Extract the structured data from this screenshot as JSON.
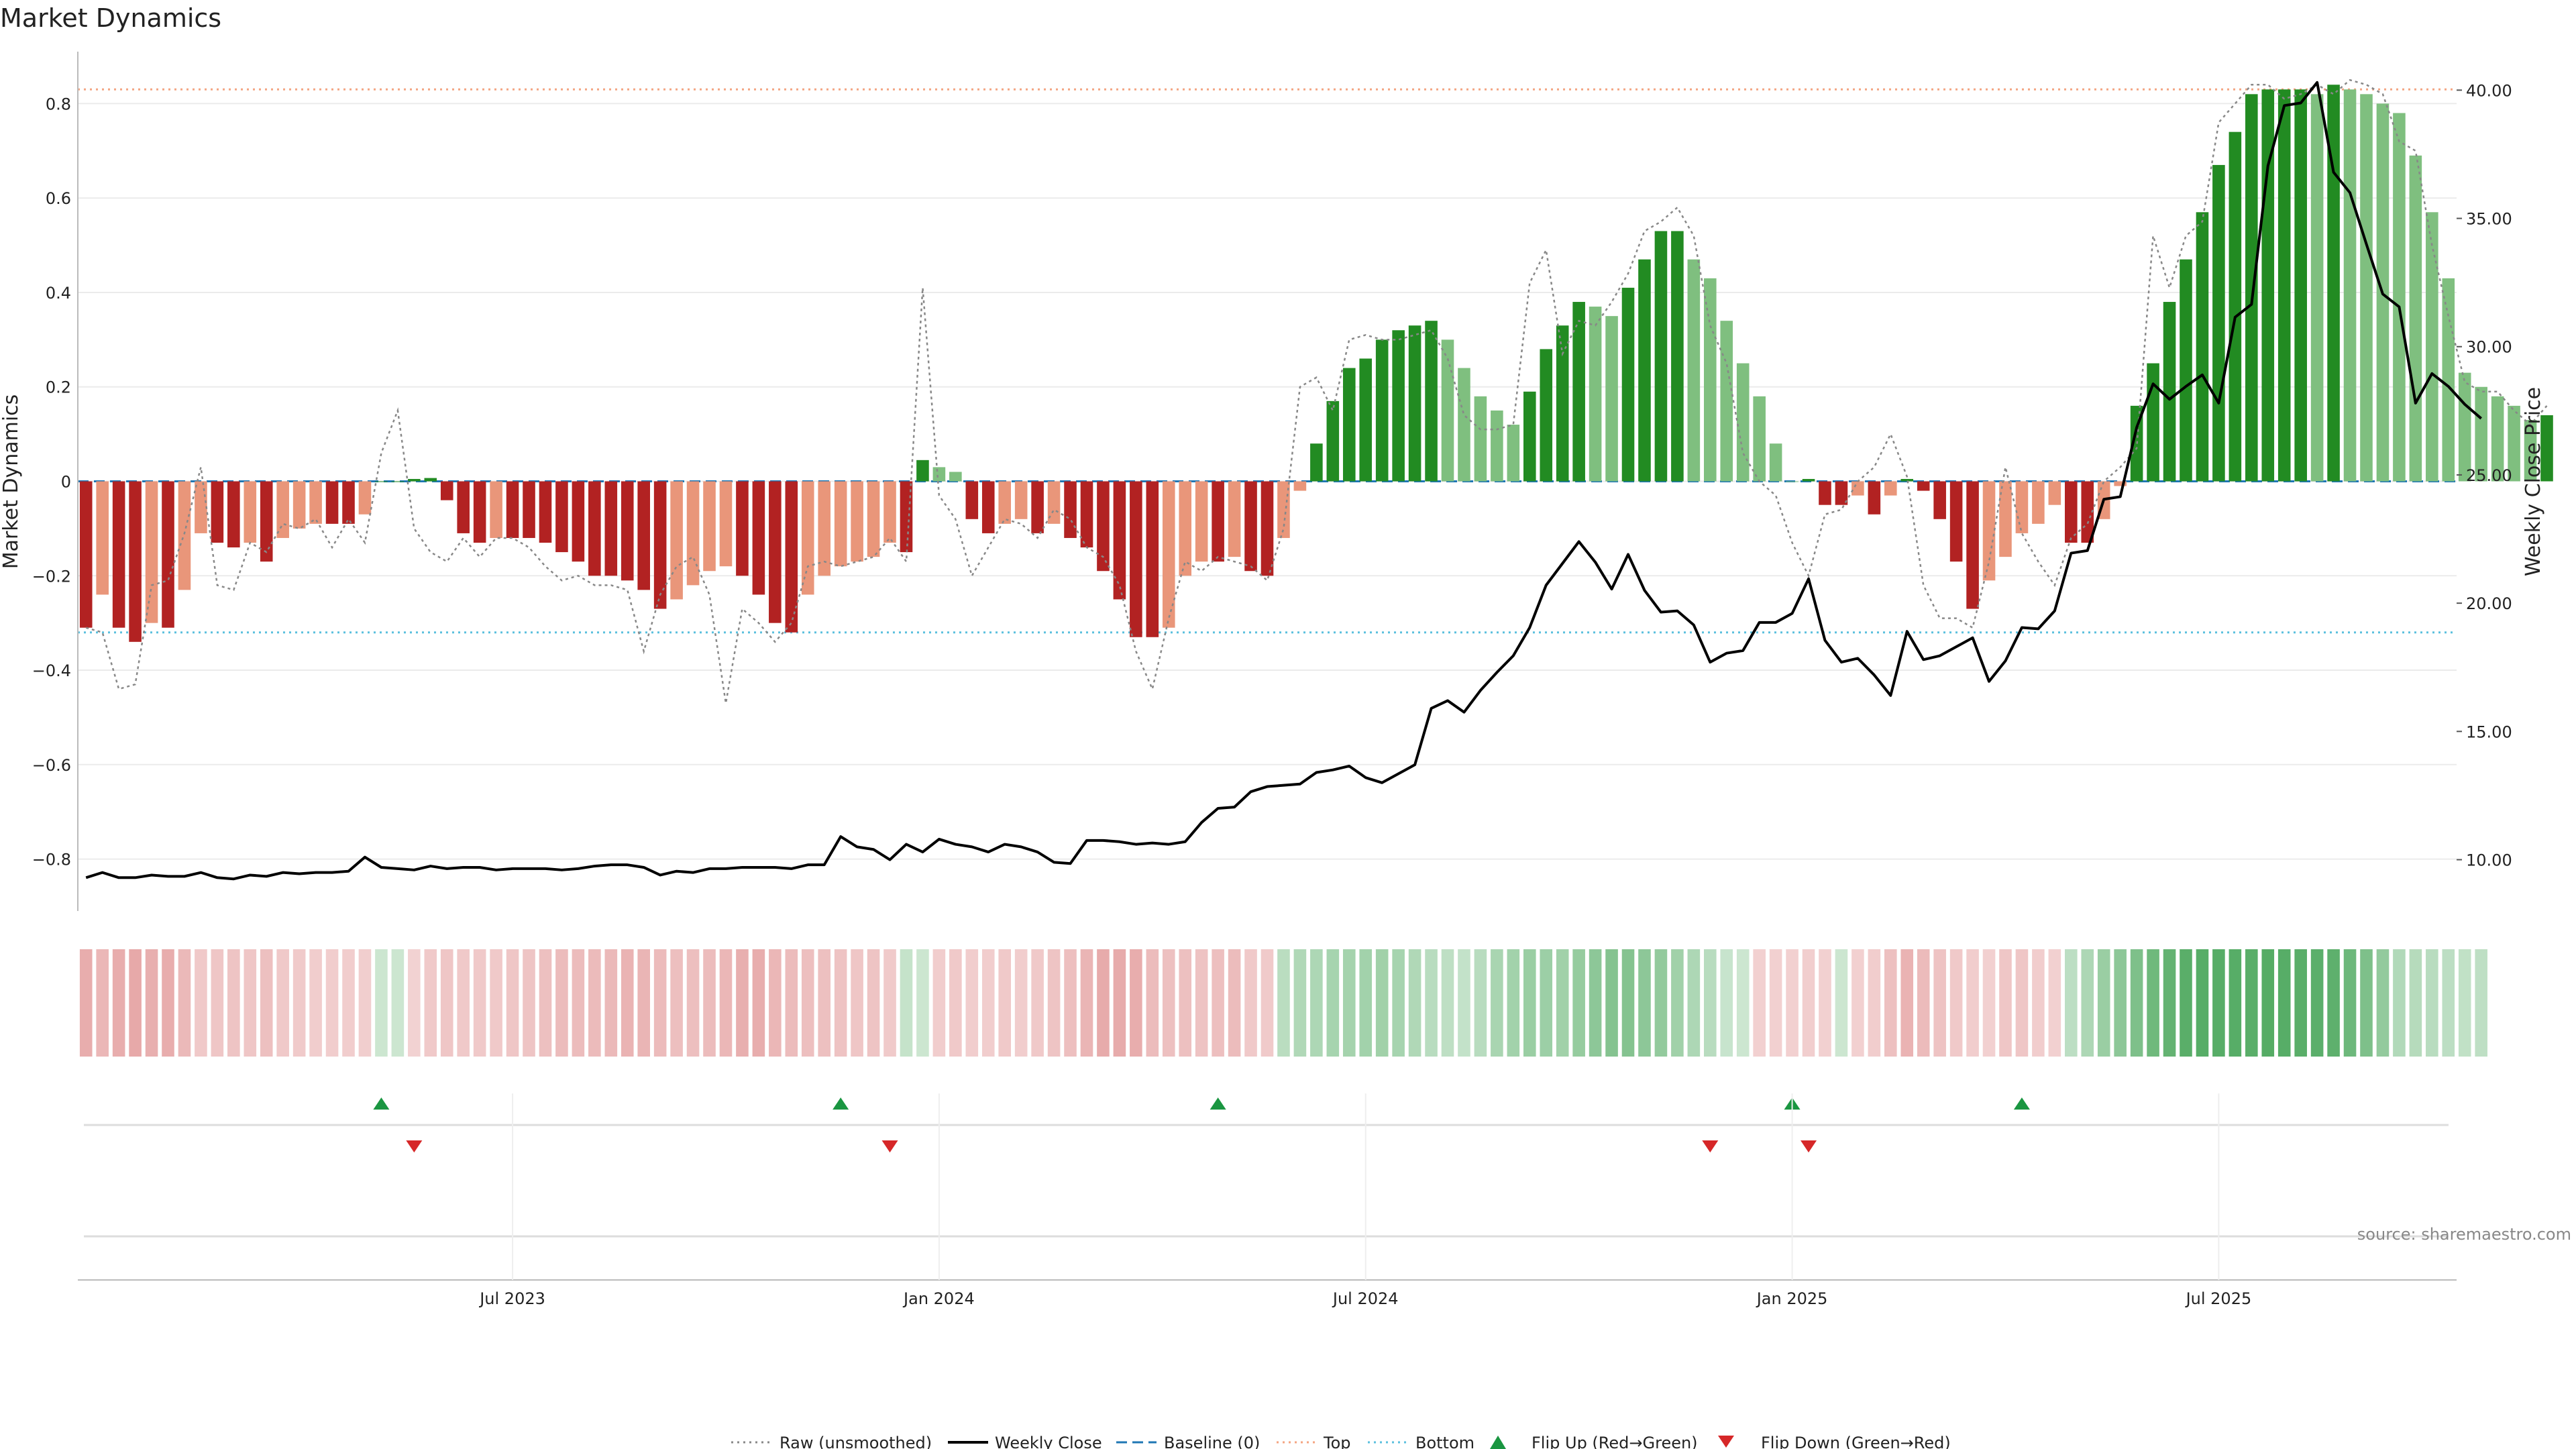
{
  "title": "Market Dynamics",
  "source": "source: sharemaestro.com",
  "colors": {
    "strong_red": "#b22222",
    "weak_red": "#e9967a",
    "strong_green": "#228b22",
    "weak_green": "#7fbf7f",
    "raw": "#888888",
    "close": "#000000",
    "baseline": "#1f77b4",
    "top": "#f4a582",
    "bottom": "#5bc0de",
    "flip_up": "#1a9641",
    "flip_down": "#d62728"
  },
  "chart_data": {
    "type": "bar",
    "title": "Market Dynamics",
    "ylabel": "Market Dynamics",
    "y2label": "Weekly Close Price",
    "ylim": [
      -0.91,
      0.91
    ],
    "y2lim": [
      8.0,
      41.5
    ],
    "yticks": [
      -0.8,
      -0.6,
      -0.4,
      -0.2,
      0,
      0.2,
      0.4,
      0.6,
      0.8
    ],
    "yticklabels": [
      "−0.8",
      "−0.6",
      "−0.4",
      "−0.2",
      "0",
      "0.2",
      "0.4",
      "0.6",
      "0.8"
    ],
    "y2ticks": [
      10,
      15,
      20,
      25,
      30,
      35,
      40
    ],
    "y2ticklabels": [
      "10.00",
      "15.00",
      "20.00",
      "25.00",
      "30.00",
      "35.00",
      "40.00"
    ],
    "top_line": 0.83,
    "bottom_line": -0.32,
    "baseline": 0,
    "x_start": "2023-01-02",
    "week_count": 145,
    "xticks": [
      {
        "week": 26,
        "label": "Jul 2023"
      },
      {
        "week": 52,
        "label": "Jan 2024"
      },
      {
        "week": 78,
        "label": "Jul 2024"
      },
      {
        "week": 104,
        "label": "Jan 2025"
      },
      {
        "week": 130,
        "label": "Jul 2025"
      }
    ],
    "series": [
      {
        "name": "Market Dynamics",
        "kind": "bar",
        "values": [
          -0.31,
          -0.24,
          -0.31,
          -0.34,
          -0.3,
          -0.31,
          -0.23,
          -0.11,
          -0.13,
          -0.14,
          -0.13,
          -0.17,
          -0.12,
          -0.1,
          -0.09,
          -0.09,
          -0.09,
          -0.07,
          0.0,
          0.0,
          0.005,
          0.007,
          -0.04,
          -0.11,
          -0.13,
          -0.12,
          -0.12,
          -0.12,
          -0.13,
          -0.15,
          -0.17,
          -0.2,
          -0.2,
          -0.21,
          -0.23,
          -0.27,
          -0.25,
          -0.22,
          -0.19,
          -0.18,
          -0.2,
          -0.24,
          -0.3,
          -0.32,
          -0.24,
          -0.2,
          -0.18,
          -0.17,
          -0.16,
          -0.13,
          -0.15,
          0.045,
          0.03,
          0.02,
          -0.08,
          -0.11,
          -0.09,
          -0.08,
          -0.11,
          -0.09,
          -0.12,
          -0.14,
          -0.19,
          -0.25,
          -0.33,
          -0.33,
          -0.31,
          -0.2,
          -0.17,
          -0.17,
          -0.16,
          -0.19,
          -0.2,
          -0.12,
          -0.02,
          0.08,
          0.17,
          0.24,
          0.26,
          0.3,
          0.32,
          0.33,
          0.34,
          0.3,
          0.24,
          0.18,
          0.15,
          0.12,
          0.19,
          0.28,
          0.33,
          0.38,
          0.37,
          0.35,
          0.41,
          0.47,
          0.53,
          0.53,
          0.47,
          0.43,
          0.34,
          0.25,
          0.18,
          0.08,
          0.0,
          0.005,
          -0.05,
          -0.05,
          -0.03,
          -0.07,
          -0.03,
          0.005,
          -0.02,
          -0.08,
          -0.17,
          -0.27,
          -0.21,
          -0.16,
          -0.11,
          -0.09,
          -0.05,
          -0.13,
          -0.13,
          -0.08,
          -0.01,
          0.16,
          0.25,
          0.38,
          0.47,
          0.57,
          0.67,
          0.74,
          0.82,
          0.83,
          0.83,
          0.83,
          0.82,
          0.84,
          0.83,
          0.82,
          0.8,
          0.78,
          0.69,
          0.57,
          0.43,
          0.23,
          0.2,
          0.18,
          0.16,
          0.13,
          0.14
        ]
      },
      {
        "name": "Raw (unsmoothed)",
        "kind": "line",
        "style": "dotted",
        "values": [
          -0.31,
          -0.32,
          -0.44,
          -0.43,
          -0.22,
          -0.21,
          -0.11,
          0.03,
          -0.22,
          -0.23,
          -0.13,
          -0.15,
          -0.09,
          -0.1,
          -0.08,
          -0.14,
          -0.08,
          -0.13,
          0.06,
          0.15,
          -0.1,
          -0.15,
          -0.17,
          -0.12,
          -0.16,
          -0.12,
          -0.12,
          -0.14,
          -0.18,
          -0.21,
          -0.2,
          -0.22,
          -0.22,
          -0.23,
          -0.36,
          -0.24,
          -0.18,
          -0.16,
          -0.24,
          -0.47,
          -0.27,
          -0.3,
          -0.34,
          -0.3,
          -0.18,
          -0.17,
          -0.18,
          -0.17,
          -0.16,
          -0.12,
          -0.17,
          0.41,
          -0.03,
          -0.08,
          -0.2,
          -0.14,
          -0.08,
          -0.09,
          -0.12,
          -0.06,
          -0.08,
          -0.14,
          -0.16,
          -0.22,
          -0.36,
          -0.44,
          -0.29,
          -0.17,
          -0.19,
          -0.16,
          -0.17,
          -0.18,
          -0.21,
          -0.1,
          0.2,
          0.22,
          0.15,
          0.3,
          0.31,
          0.3,
          0.3,
          0.31,
          0.32,
          0.26,
          0.14,
          0.11,
          0.11,
          0.12,
          0.42,
          0.49,
          0.27,
          0.34,
          0.33,
          0.38,
          0.44,
          0.53,
          0.55,
          0.58,
          0.52,
          0.33,
          0.25,
          0.06,
          0.0,
          -0.03,
          -0.13,
          -0.2,
          -0.07,
          -0.06,
          0.0,
          0.03,
          0.1,
          0.01,
          -0.22,
          -0.29,
          -0.29,
          -0.31,
          -0.17,
          0.03,
          -0.11,
          -0.17,
          -0.22,
          -0.12,
          -0.09,
          0.0,
          0.03,
          0.07,
          0.52,
          0.41,
          0.52,
          0.55,
          0.76,
          0.8,
          0.84,
          0.84,
          0.81,
          0.82,
          0.84,
          0.82,
          0.85,
          0.84,
          0.82,
          0.72,
          0.7,
          0.5,
          0.35,
          0.21,
          0.19,
          0.19,
          0.15,
          0.12,
          0.16
        ]
      },
      {
        "name": "Weekly Close",
        "kind": "line",
        "axis": "right",
        "values": [
          9.3,
          9.5,
          9.3,
          9.3,
          9.4,
          9.35,
          9.35,
          9.5,
          9.3,
          9.25,
          9.4,
          9.35,
          9.5,
          9.45,
          9.5,
          9.5,
          9.55,
          10.1,
          9.7,
          9.65,
          9.6,
          9.75,
          9.65,
          9.7,
          9.7,
          9.6,
          9.65,
          9.65,
          9.65,
          9.6,
          9.65,
          9.75,
          9.8,
          9.8,
          9.7,
          9.4,
          9.55,
          9.5,
          9.65,
          9.65,
          9.7,
          9.7,
          9.7,
          9.65,
          9.8,
          9.8,
          10.9,
          10.5,
          10.4,
          10.0,
          10.6,
          10.3,
          10.8,
          10.6,
          10.5,
          10.3,
          10.6,
          10.5,
          10.3,
          9.9,
          9.85,
          10.75,
          10.75,
          10.7,
          10.6,
          10.65,
          10.6,
          10.7,
          11.45,
          12.0,
          12.05,
          12.65,
          12.85,
          12.9,
          12.95,
          13.4,
          13.5,
          13.65,
          13.2,
          13.0,
          13.35,
          13.7,
          15.9,
          16.2,
          15.75,
          16.6,
          17.3,
          17.95,
          19.05,
          20.7,
          21.55,
          22.4,
          21.6,
          20.55,
          21.9,
          20.5,
          19.65,
          19.7,
          19.15,
          17.7,
          18.05,
          18.15,
          19.25,
          19.25,
          19.6,
          20.95,
          18.55,
          17.7,
          17.85,
          17.2,
          16.4,
          18.9,
          17.8,
          17.95,
          18.3,
          18.65,
          16.95,
          17.75,
          19.05,
          19.0,
          19.7,
          21.95,
          22.05,
          24.05,
          24.15,
          26.85,
          28.55,
          27.95,
          28.45,
          28.9,
          27.8,
          31.15,
          31.65,
          37.05,
          39.4,
          39.5,
          40.3,
          36.8,
          36.0,
          34.0,
          32.05,
          31.55,
          27.8,
          28.95,
          28.45,
          27.75,
          27.2
        ]
      }
    ],
    "strength_strip": {
      "name": "Trend Strength",
      "values": [
        -0.31,
        -0.24,
        -0.31,
        -0.34,
        -0.3,
        -0.31,
        -0.23,
        -0.11,
        -0.13,
        -0.14,
        -0.13,
        -0.17,
        -0.12,
        -0.1,
        -0.09,
        -0.09,
        -0.09,
        -0.07,
        0.05,
        0.05,
        -0.04,
        -0.11,
        -0.13,
        -0.12,
        -0.12,
        -0.12,
        -0.13,
        -0.15,
        -0.17,
        -0.2,
        -0.2,
        -0.21,
        -0.23,
        -0.27,
        -0.25,
        -0.22,
        -0.19,
        -0.18,
        -0.2,
        -0.24,
        -0.3,
        -0.32,
        -0.24,
        -0.2,
        -0.18,
        -0.17,
        -0.16,
        -0.13,
        -0.15,
        -0.1,
        0.1,
        0.05,
        -0.08,
        -0.11,
        -0.09,
        -0.08,
        -0.11,
        -0.09,
        -0.12,
        -0.14,
        -0.19,
        -0.25,
        -0.33,
        -0.33,
        -0.31,
        -0.2,
        -0.17,
        -0.17,
        -0.16,
        -0.19,
        -0.2,
        -0.12,
        -0.1,
        0.17,
        0.24,
        0.26,
        0.3,
        0.32,
        0.33,
        0.34,
        0.3,
        0.24,
        0.18,
        0.15,
        0.12,
        0.19,
        0.28,
        0.33,
        0.38,
        0.37,
        0.35,
        0.41,
        0.47,
        0.53,
        0.53,
        0.47,
        0.43,
        0.34,
        0.25,
        0.18,
        0.08,
        0.05,
        -0.05,
        -0.05,
        -0.05,
        -0.07,
        -0.05,
        0.05,
        -0.05,
        -0.08,
        -0.17,
        -0.27,
        -0.21,
        -0.16,
        -0.11,
        -0.09,
        -0.05,
        -0.13,
        -0.13,
        -0.08,
        -0.05,
        0.16,
        0.25,
        0.38,
        0.47,
        0.57,
        0.67,
        0.74,
        0.82,
        0.83,
        0.83,
        0.83,
        0.82,
        0.84,
        0.83,
        0.82,
        0.8,
        0.78,
        0.69,
        0.57,
        0.43,
        0.23,
        0.2,
        0.18,
        0.16,
        0.13,
        0.14
      ]
    },
    "flip_up_weeks": [
      18,
      46,
      69,
      104,
      118
    ],
    "flip_down_weeks": [
      20,
      49,
      99,
      105
    ]
  },
  "legend": {
    "raw": "Raw (unsmoothed)",
    "close": "Weekly Close",
    "baseline": "Baseline (0)",
    "top": "Top",
    "bottom": "Bottom",
    "flip_up": "Flip Up (Red→Green)",
    "flip_down": "Flip Down (Green→Red)"
  }
}
